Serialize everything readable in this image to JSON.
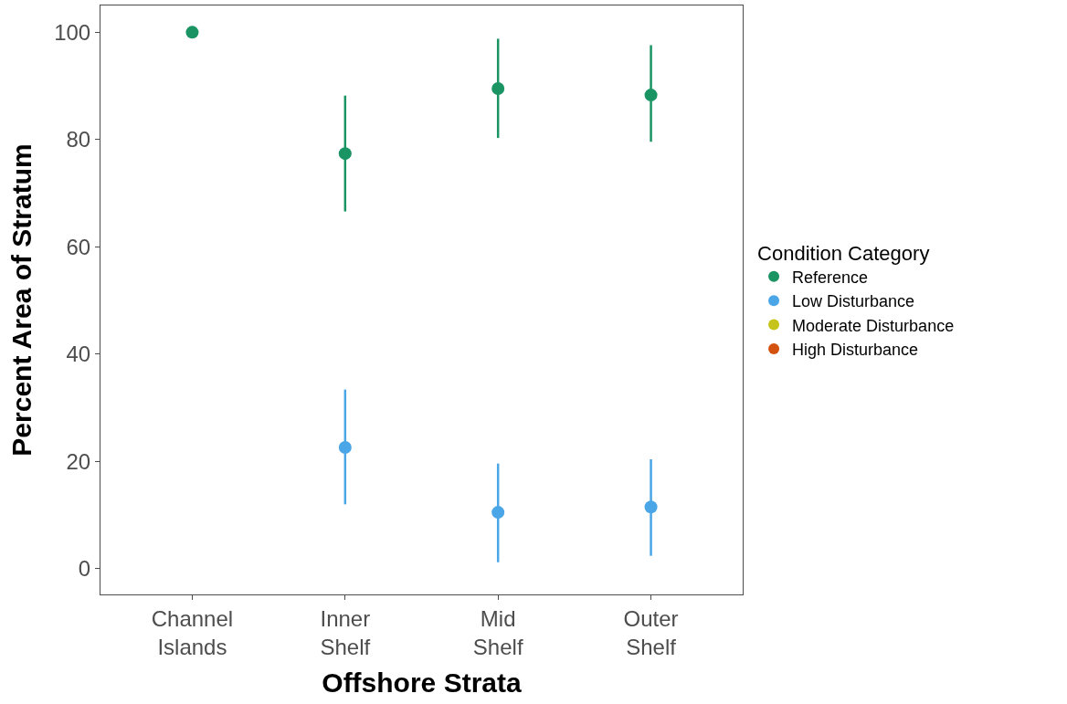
{
  "chart_data": {
    "type": "scatter",
    "xlabel": "Offshore Strata",
    "ylabel": "Percent Area of Stratum",
    "legend_title": "Condition Category",
    "categories": [
      "Channel\nIslands",
      "Inner\nShelf",
      "Mid\nShelf",
      "Outer\nShelf"
    ],
    "series": [
      {
        "name": "Reference",
        "color": "#1b9463",
        "values": [
          100,
          77.4,
          89.5,
          88.3
        ],
        "errors": [
          null,
          [
            66.6,
            88.2
          ],
          [
            80.3,
            98.8
          ],
          [
            79.6,
            97.6
          ]
        ]
      },
      {
        "name": "Low Disturbance",
        "color": "#4aa6e6",
        "values": [
          null,
          22.6,
          10.5,
          11.5
        ],
        "errors": [
          null,
          [
            12.0,
            33.4
          ],
          [
            1.2,
            19.6
          ],
          [
            2.4,
            20.4
          ]
        ]
      },
      {
        "name": "Moderate Disturbance",
        "color": "#c6c41a",
        "values": [
          null,
          null,
          null,
          null
        ]
      },
      {
        "name": "High Disturbance",
        "color": "#d4520f",
        "values": [
          null,
          null,
          null,
          null
        ]
      }
    ],
    "ylim": [
      -4.8,
      105
    ],
    "yticks": [
      0,
      20,
      40,
      60,
      80,
      100
    ],
    "legend": "right",
    "marker": "circle"
  }
}
